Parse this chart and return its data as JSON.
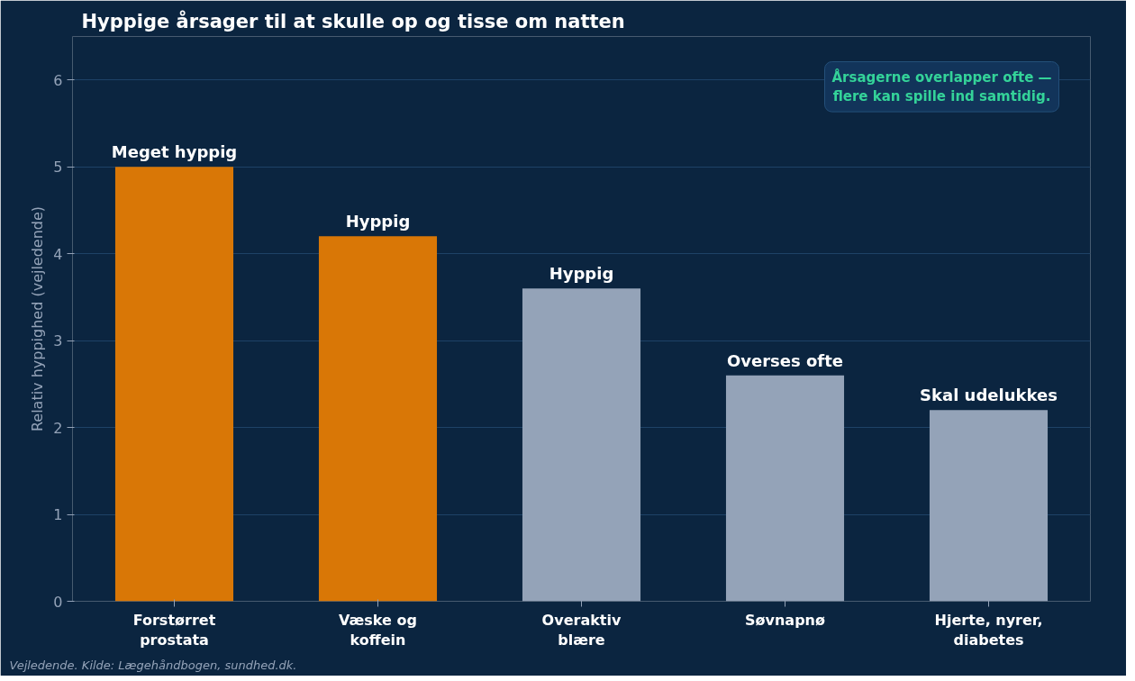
{
  "chart_data": {
    "type": "bar",
    "title": "Hyppige årsager til at skulle op og tisse om natten",
    "ylabel": "Relativ hyppighed (vejledende)",
    "categories": [
      "Forstørret\nprostata",
      "Væske og\nkoffein",
      "Overaktiv\nblære",
      "Søvnapnø",
      "Hjerte, nyrer,\ndiabetes"
    ],
    "values": [
      5.0,
      4.2,
      3.6,
      2.6,
      2.2
    ],
    "colors": [
      "#d97706",
      "#d97706",
      "#94a3b8",
      "#94a3b8",
      "#94a3b8"
    ],
    "value_labels": [
      "Meget hyppig",
      "Hyppig",
      "Hyppig",
      "Overses ofte",
      "Skal udelukkes"
    ],
    "ylim": [
      0,
      6.5
    ],
    "yticks": [
      0,
      1,
      2,
      3,
      4,
      5,
      6
    ],
    "grid": "y",
    "annotations": [
      "Årsagerne overlapper ofte —\nflere kan spille ind samtidig.",
      "Vejledende. Kilde: Lægehåndbogen, sundhed.dk."
    ]
  }
}
